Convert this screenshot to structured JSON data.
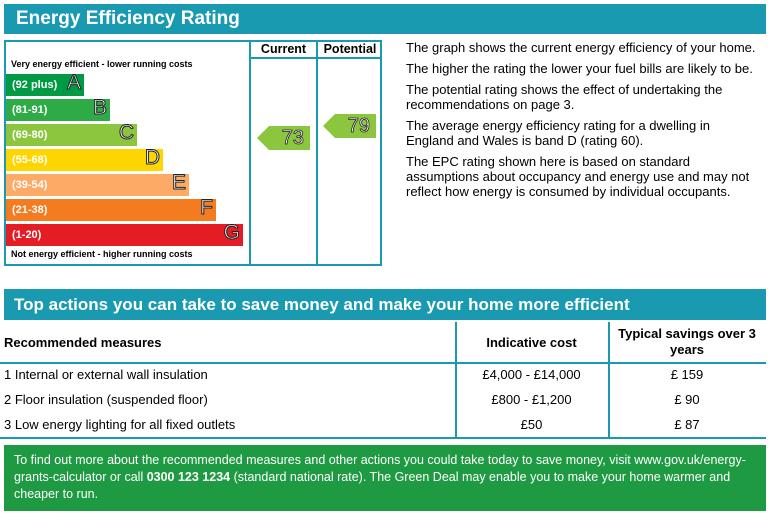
{
  "title": "Energy Efficiency Rating",
  "chart": {
    "col_current": "Current",
    "col_potential": "Potential",
    "top_caption": "Very energy efficient - lower running costs",
    "bottom_caption": "Not energy efficient - higher running costs",
    "bands": [
      {
        "range": "(92 plus)",
        "letter": "A",
        "color": "#009a44"
      },
      {
        "range": "(81-91)",
        "letter": "B",
        "color": "#2eaa47"
      },
      {
        "range": "(69-80)",
        "letter": "C",
        "color": "#8cc63f"
      },
      {
        "range": "(55-68)",
        "letter": "D",
        "color": "#ffd500"
      },
      {
        "range": "(39-54)",
        "letter": "E",
        "color": "#fcaa65"
      },
      {
        "range": "(21-38)",
        "letter": "F",
        "color": "#f47b20"
      },
      {
        "range": "(1-20)",
        "letter": "G",
        "color": "#e31d23"
      }
    ],
    "current_value": "73",
    "potential_value": "79"
  },
  "description": [
    "The graph shows the current energy efficiency of your home.",
    "The higher the rating the lower your fuel bills are likely to be.",
    "The potential rating shows the effect of undertaking the recommendations on page 3.",
    "The average energy efficiency rating for a dwelling in England and Wales is band D (rating 60).",
    "The EPC rating shown here is based on standard assumptions about occupancy and energy use and may not reflect how energy is consumed by individual occupants."
  ],
  "actions": {
    "title": "Top actions you can take to save money and make your home more efficient",
    "headers": {
      "measures": "Recommended measures",
      "cost": "Indicative cost",
      "savings": "Typical savings over 3 years"
    },
    "rows": [
      {
        "measure": "1  Internal or external wall insulation",
        "cost": "£4,000 - £14,000",
        "savings": "£ 159"
      },
      {
        "measure": "2  Floor insulation (suspended floor)",
        "cost": "£800 - £1,200",
        "savings": "£ 90"
      },
      {
        "measure": "3  Low energy lighting for all fixed outlets",
        "cost": "£50",
        "savings": "£ 87"
      }
    ]
  },
  "footer": {
    "text_before": "To find out more about the recommended measures and other actions you could take today to save money, visit www.gov.uk/energy-grants-calculator or call ",
    "phone": "0300 123 1234",
    "text_after": " (standard national rate). The Green Deal may enable you to make your home warmer and cheaper to run."
  }
}
